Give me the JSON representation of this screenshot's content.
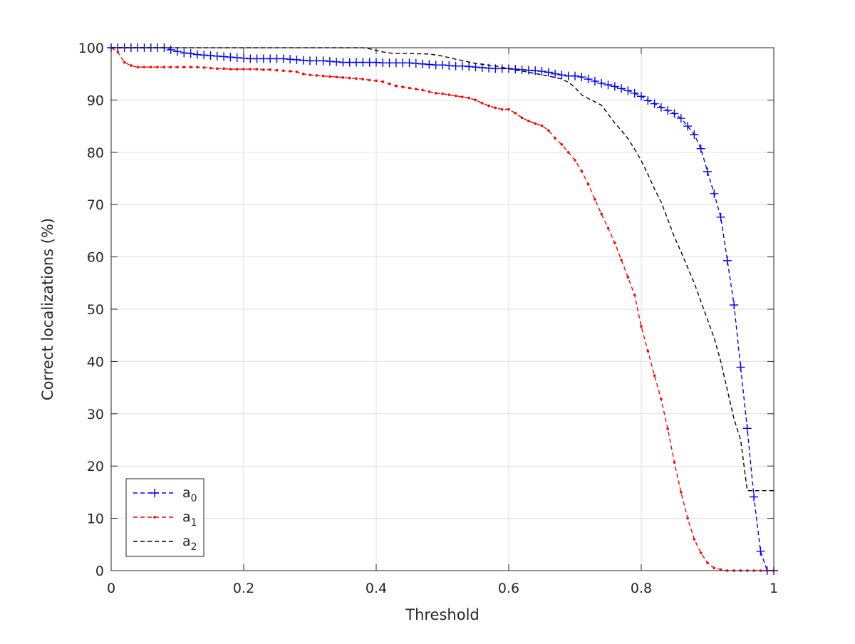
{
  "chart_data": {
    "type": "line",
    "title": "",
    "xlabel": "Threshold",
    "ylabel": "Correct localizations (%)",
    "xlim": [
      0,
      1
    ],
    "ylim": [
      0,
      100
    ],
    "xticks": [
      0,
      0.2,
      0.4,
      0.6,
      0.8,
      1
    ],
    "xtick_labels": [
      "0",
      "0.2",
      "0.4",
      "0.6",
      "0.8",
      "1"
    ],
    "yticks": [
      0,
      10,
      20,
      30,
      40,
      50,
      60,
      70,
      80,
      90,
      100
    ],
    "ytick_labels": [
      "0",
      "10",
      "20",
      "30",
      "40",
      "50",
      "60",
      "70",
      "80",
      "90",
      "100"
    ],
    "grid": true,
    "legend_position": "bottom-left",
    "series": [
      {
        "name": "a",
        "subscript": "0",
        "color": "#0000ff",
        "line_style": "dashed",
        "marker": "plus",
        "x": [
          0,
          0.01,
          0.02,
          0.03,
          0.04,
          0.05,
          0.06,
          0.07,
          0.08,
          0.09,
          0.1,
          0.11,
          0.12,
          0.13,
          0.14,
          0.15,
          0.16,
          0.17,
          0.18,
          0.19,
          0.2,
          0.21,
          0.22,
          0.23,
          0.24,
          0.25,
          0.26,
          0.27,
          0.28,
          0.29,
          0.3,
          0.31,
          0.32,
          0.33,
          0.34,
          0.35,
          0.36,
          0.37,
          0.38,
          0.39,
          0.4,
          0.41,
          0.42,
          0.43,
          0.44,
          0.45,
          0.46,
          0.47,
          0.48,
          0.49,
          0.5,
          0.51,
          0.52,
          0.53,
          0.54,
          0.55,
          0.56,
          0.57,
          0.58,
          0.59,
          0.6,
          0.61,
          0.62,
          0.63,
          0.64,
          0.65,
          0.66,
          0.67,
          0.68,
          0.69,
          0.7,
          0.71,
          0.72,
          0.73,
          0.74,
          0.75,
          0.76,
          0.77,
          0.78,
          0.79,
          0.8,
          0.81,
          0.82,
          0.83,
          0.84,
          0.85,
          0.86,
          0.87,
          0.88,
          0.89,
          0.9,
          0.91,
          0.92,
          0.93,
          0.94,
          0.95,
          0.96,
          0.97,
          0.98,
          0.99,
          1.0
        ],
        "values": [
          100,
          100,
          100,
          100,
          100,
          100,
          100,
          100,
          100,
          99.6,
          99.3,
          99.0,
          98.9,
          98.7,
          98.6,
          98.5,
          98.4,
          98.3,
          98.2,
          98.1,
          98.0,
          97.9,
          97.9,
          97.9,
          97.9,
          97.9,
          97.9,
          97.8,
          97.7,
          97.6,
          97.5,
          97.5,
          97.5,
          97.4,
          97.3,
          97.2,
          97.2,
          97.2,
          97.2,
          97.2,
          97.2,
          97.1,
          97.1,
          97.1,
          97.1,
          97.1,
          97.0,
          96.9,
          96.8,
          96.7,
          96.7,
          96.6,
          96.5,
          96.5,
          96.4,
          96.3,
          96.2,
          96.1,
          96.0,
          96.0,
          96.0,
          95.9,
          95.8,
          95.7,
          95.6,
          95.5,
          95.3,
          95.0,
          94.8,
          94.6,
          94.6,
          94.4,
          94.0,
          93.6,
          93.2,
          92.9,
          92.6,
          92.2,
          91.8,
          91.3,
          90.7,
          89.9,
          89.3,
          88.6,
          88.0,
          87.4,
          86.5,
          85.0,
          83.4,
          80.7,
          76.3,
          72.1,
          67.6,
          59.3,
          50.8,
          38.9,
          27.2,
          14.1,
          3.7,
          0,
          0
        ]
      },
      {
        "name": "a",
        "subscript": "1",
        "color": "#ff0000",
        "line_style": "dashed",
        "marker": "dot",
        "x": [
          0,
          0.01,
          0.02,
          0.03,
          0.04,
          0.05,
          0.06,
          0.07,
          0.08,
          0.09,
          0.1,
          0.11,
          0.12,
          0.13,
          0.14,
          0.15,
          0.16,
          0.17,
          0.18,
          0.19,
          0.2,
          0.21,
          0.22,
          0.23,
          0.24,
          0.25,
          0.26,
          0.27,
          0.28,
          0.29,
          0.3,
          0.31,
          0.32,
          0.33,
          0.34,
          0.35,
          0.36,
          0.37,
          0.38,
          0.39,
          0.4,
          0.41,
          0.42,
          0.43,
          0.44,
          0.45,
          0.46,
          0.47,
          0.48,
          0.49,
          0.5,
          0.51,
          0.52,
          0.53,
          0.54,
          0.55,
          0.56,
          0.57,
          0.58,
          0.59,
          0.6,
          0.61,
          0.62,
          0.63,
          0.64,
          0.65,
          0.66,
          0.67,
          0.68,
          0.69,
          0.7,
          0.71,
          0.72,
          0.73,
          0.74,
          0.75,
          0.76,
          0.77,
          0.78,
          0.79,
          0.8,
          0.81,
          0.82,
          0.83,
          0.84,
          0.85,
          0.86,
          0.87,
          0.88,
          0.89,
          0.9,
          0.91,
          0.92,
          0.93,
          0.94,
          0.95,
          0.96,
          0.97,
          0.98,
          0.99,
          1.0
        ],
        "values": [
          100,
          99.2,
          97.2,
          96.6,
          96.3,
          96.3,
          96.3,
          96.3,
          96.3,
          96.3,
          96.3,
          96.3,
          96.3,
          96.3,
          96.2,
          96.1,
          96.0,
          96.0,
          95.9,
          95.9,
          95.9,
          95.9,
          95.9,
          95.8,
          95.8,
          95.7,
          95.6,
          95.5,
          95.4,
          95.0,
          94.8,
          94.7,
          94.6,
          94.5,
          94.4,
          94.3,
          94.2,
          94.1,
          94.0,
          93.8,
          93.7,
          93.5,
          93.1,
          92.7,
          92.5,
          92.3,
          92.1,
          91.9,
          91.6,
          91.3,
          91.2,
          91.0,
          90.8,
          90.6,
          90.4,
          90.0,
          89.4,
          88.9,
          88.5,
          88.2,
          88.2,
          87.5,
          86.6,
          86.0,
          85.5,
          85.1,
          84.2,
          82.7,
          81.5,
          80.0,
          78.5,
          76.4,
          73.9,
          71.0,
          68.2,
          65.5,
          62.7,
          59.4,
          56.1,
          52.7,
          46.7,
          42.0,
          37.3,
          32.8,
          27.1,
          20.7,
          15.0,
          10.0,
          6.0,
          3.4,
          1.5,
          0.5,
          0.2,
          0,
          0,
          0,
          0,
          0,
          0,
          0,
          0
        ]
      },
      {
        "name": "a",
        "subscript": "2",
        "color": "#000000",
        "line_style": "dashed",
        "marker": "none",
        "x": [
          0,
          0.1,
          0.2,
          0.3,
          0.38,
          0.39,
          0.4,
          0.41,
          0.42,
          0.43,
          0.45,
          0.48,
          0.5,
          0.52,
          0.55,
          0.58,
          0.6,
          0.63,
          0.66,
          0.68,
          0.69,
          0.7,
          0.71,
          0.72,
          0.74,
          0.75,
          0.76,
          0.77,
          0.78,
          0.79,
          0.8,
          0.81,
          0.82,
          0.83,
          0.84,
          0.85,
          0.86,
          0.87,
          0.88,
          0.89,
          0.9,
          0.91,
          0.92,
          0.93,
          0.94,
          0.95,
          0.96,
          0.97,
          0.98,
          0.99,
          1.0
        ],
        "values": [
          100,
          100,
          100,
          100,
          100,
          99.8,
          99.5,
          99.2,
          99.0,
          98.9,
          98.9,
          98.8,
          98.4,
          97.8,
          97.0,
          96.5,
          96.0,
          95.3,
          94.6,
          94.0,
          93.4,
          92.4,
          91.0,
          90.3,
          89.0,
          87.3,
          85.6,
          84.2,
          82.6,
          80.6,
          78.4,
          75.8,
          73.0,
          70.5,
          67.2,
          63.8,
          61.0,
          58.0,
          55.0,
          51.5,
          48.0,
          44.5,
          40.0,
          34.5,
          29.0,
          25.0,
          15.3,
          15.3,
          15.3,
          15.3,
          15.3
        ]
      }
    ]
  }
}
